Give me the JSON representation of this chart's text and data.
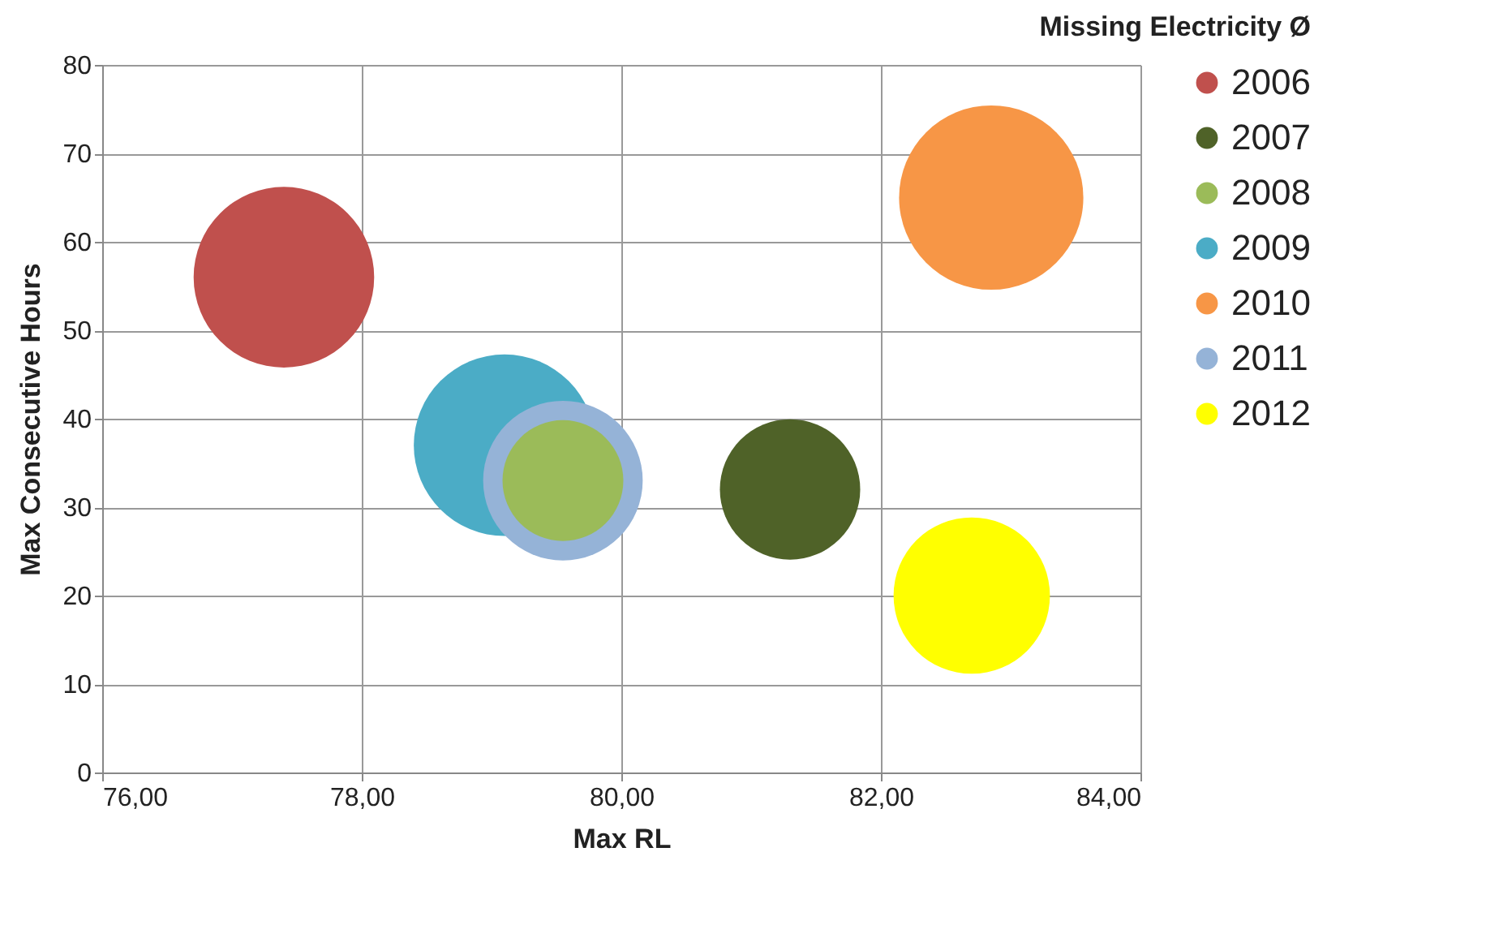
{
  "chart_data": {
    "type": "bubble",
    "title": "Missing Electricity Ø",
    "xlabel": "Max RL",
    "ylabel": "Max Consecutive Hours",
    "xlim": [
      76,
      84
    ],
    "xticks": [
      {
        "value": 76,
        "label": "76,00"
      },
      {
        "value": 78,
        "label": "78,00"
      },
      {
        "value": 80,
        "label": "80,00"
      },
      {
        "value": 82,
        "label": "82,00"
      },
      {
        "value": 84,
        "label": "84,00"
      }
    ],
    "ylim": [
      0,
      80
    ],
    "yticks": [
      0,
      10,
      20,
      30,
      40,
      50,
      60,
      70,
      80
    ],
    "grid": true,
    "legend": "right",
    "marker": "circle",
    "series": [
      {
        "name": "2006",
        "color": "#c0504d",
        "x": [
          77.4
        ],
        "values": [
          56
        ],
        "sizes": [
          0.96
        ]
      },
      {
        "name": "2007",
        "color": "#4f6228",
        "x": [
          81.3
        ],
        "values": [
          32
        ],
        "sizes": [
          0.58
        ]
      },
      {
        "name": "2008",
        "color": "#9bbb59",
        "x": [
          79.55
        ],
        "values": [
          33
        ],
        "sizes": [
          0.43
        ]
      },
      {
        "name": "2009",
        "color": "#4bacc6",
        "x": [
          79.1
        ],
        "values": [
          37
        ],
        "sizes": [
          0.97
        ]
      },
      {
        "name": "2010",
        "color": "#f79646",
        "x": [
          82.85
        ],
        "values": [
          65
        ],
        "sizes": [
          1
        ]
      },
      {
        "name": "2011",
        "color": "#95b3d7",
        "x": [
          79.55
        ],
        "values": [
          33
        ],
        "sizes": [
          0.75
        ]
      },
      {
        "name": "2012",
        "color": "#ffff00",
        "x": [
          82.7
        ],
        "values": [
          20
        ],
        "sizes": [
          0.72
        ]
      }
    ]
  }
}
